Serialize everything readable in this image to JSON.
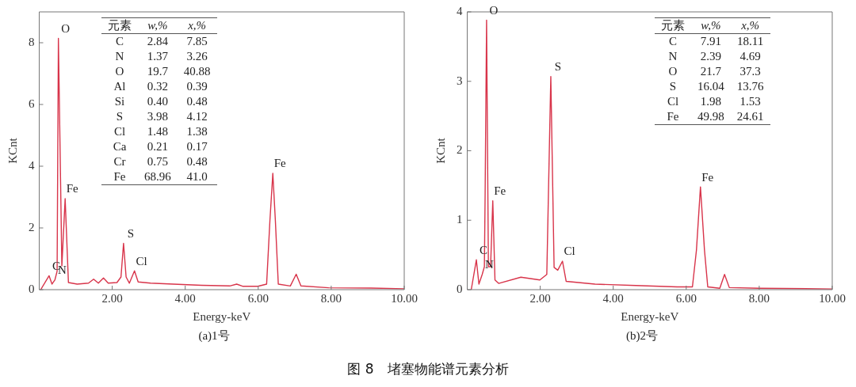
{
  "chart_data": [
    {
      "type": "line",
      "title": "图 8　堵塞物能谱元素分析",
      "subtitle": "(a)1号",
      "xlabel": "Energy-keV",
      "ylabel": "KCnt",
      "marker": "none",
      "grid": false,
      "legend": false,
      "xlim": [
        0,
        10
      ],
      "xticks": [
        {
          "value": 2,
          "label": "2.00"
        },
        {
          "value": 4,
          "label": "4.00"
        },
        {
          "value": 6,
          "label": "6.00"
        },
        {
          "value": 8,
          "label": "8.00"
        },
        {
          "value": 10,
          "label": "10.00"
        }
      ],
      "ylim": [
        0,
        9
      ],
      "yticks": [
        0,
        2,
        4,
        6,
        8
      ],
      "x": [
        0.04,
        0.27,
        0.35,
        0.43,
        0.49,
        0.525,
        0.62,
        0.71,
        0.8,
        1.04,
        1.35,
        1.49,
        1.62,
        1.76,
        1.89,
        2.13,
        2.24,
        2.31,
        2.38,
        2.47,
        2.61,
        2.71,
        3.05,
        3.67,
        4.45,
        5.22,
        5.41,
        5.57,
        5.99,
        6.23,
        6.32,
        6.4,
        6.47,
        6.55,
        6.88,
        7.04,
        7.17,
        7.93,
        9.09,
        10
      ],
      "series": [
        {
          "color": "#d8344a",
          "values": [
            0,
            0.45,
            0.18,
            0.32,
            0.6,
            8.14,
            0.77,
            2.95,
            0.23,
            0.18,
            0.21,
            0.34,
            0.21,
            0.38,
            0.21,
            0.23,
            0.41,
            1.5,
            0.41,
            0.21,
            0.61,
            0.25,
            0.21,
            0.18,
            0.14,
            0.12,
            0.18,
            0.11,
            0.11,
            0.18,
            2.23,
            3.77,
            2.23,
            0.18,
            0.12,
            0.5,
            0.12,
            0.06,
            0.05,
            0.03
          ]
        }
      ],
      "annotations": [
        "元素 w,% x,%",
        "C 2.84 7.85",
        "N 1.37 3.26",
        "O 19.7 40.88",
        "Al 0.32 0.39",
        "Si 0.40 0.48",
        "S 3.98 4.12",
        "Cl 1.48 1.38",
        "Ca 0.21 0.17",
        "Cr 0.75 0.48",
        "Fe 68.96 41.0",
        {
          "text": "O",
          "x": 0.525,
          "y": 8.14
        },
        {
          "text": "Fe",
          "x": 0.71,
          "y": 2.95
        },
        {
          "text": "C",
          "x": 0.27,
          "y": 0.45
        },
        {
          "text": "N",
          "x": 0.43,
          "y": 0.32
        },
        {
          "text": "S",
          "x": 2.31,
          "y": 1.5
        },
        {
          "text": "Cl",
          "x": 2.61,
          "y": 0.61
        },
        {
          "text": "Fe",
          "x": 6.4,
          "y": 3.77
        }
      ]
    },
    {
      "type": "line",
      "subtitle": "(b)2号",
      "xlabel": "Energy-keV",
      "ylabel": "KCnt",
      "marker": "none",
      "grid": false,
      "legend": false,
      "xlim": [
        0,
        10
      ],
      "xticks": [
        {
          "value": 2,
          "label": "2.00"
        },
        {
          "value": 4,
          "label": "4.00"
        },
        {
          "value": 6,
          "label": "6.00"
        },
        {
          "value": 8,
          "label": "8.00"
        },
        {
          "value": 10,
          "label": "10.00"
        }
      ],
      "ylim": [
        0,
        4
      ],
      "yticks": [
        0,
        1,
        2,
        3,
        4
      ],
      "x": [
        0.11,
        0.25,
        0.32,
        0.41,
        0.47,
        0.49,
        0.53,
        0.58,
        0.64,
        0.7,
        0.76,
        0.86,
        1.47,
        1.99,
        2.18,
        2.29,
        2.38,
        2.48,
        2.61,
        2.71,
        3.5,
        4.62,
        5.75,
        6.17,
        6.28,
        6.39,
        6.5,
        6.59,
        6.92,
        7.05,
        7.18,
        8.01,
        10
      ],
      "series": [
        {
          "color": "#d8344a",
          "values": [
            0,
            0.43,
            0.08,
            0.22,
            0.33,
            1.36,
            3.88,
            0.33,
            0.33,
            1.28,
            0.14,
            0.09,
            0.18,
            0.14,
            0.22,
            3.07,
            0.32,
            0.28,
            0.41,
            0.12,
            0.08,
            0.06,
            0.04,
            0.04,
            0.57,
            1.48,
            0.57,
            0.04,
            0.02,
            0.22,
            0.03,
            0.02,
            0.01
          ]
        }
      ],
      "annotations": [
        "元素 w,% x,%",
        "C 7.91 18.11",
        "N 2.39 4.69",
        "O 21.7 37.3",
        "S 16.04 13.76",
        "Cl 1.98 1.53",
        "Fe 49.98 24.61",
        {
          "text": "O",
          "x": 0.53,
          "y": 3.88
        },
        {
          "text": "Fe",
          "x": 0.7,
          "y": 1.28
        },
        {
          "text": "C",
          "x": 0.25,
          "y": 0.43
        },
        {
          "text": "N",
          "x": 0.41,
          "y": 0.22
        },
        {
          "text": "S",
          "x": 2.29,
          "y": 3.07
        },
        {
          "text": "Cl",
          "x": 2.61,
          "y": 0.41
        },
        {
          "text": "Fe",
          "x": 6.39,
          "y": 1.48
        }
      ]
    }
  ]
}
